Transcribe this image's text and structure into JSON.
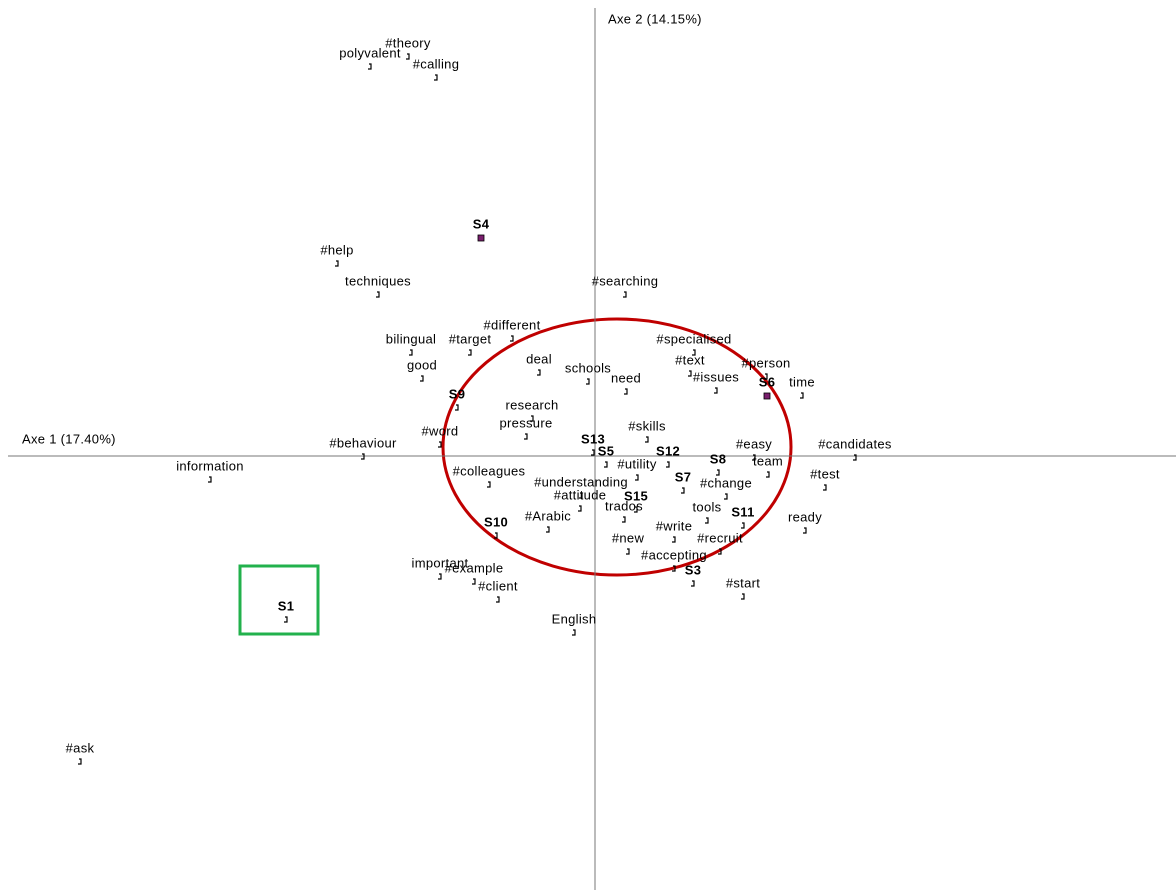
{
  "chart_data": {
    "type": "scatter",
    "xlabel": "Axe 1 (17.40%)",
    "ylabel": "Axe 2 (14.15%)",
    "xlim": [
      -5.95,
      5.81
    ],
    "ylim": [
      -4.34,
      4.56
    ],
    "color": "#000000",
    "highlight_color": "#7a1f6e",
    "points": [
      {
        "label": "#theory",
        "x": -1.87,
        "y": 3.99
      },
      {
        "label": "polyvalent",
        "x": -2.25,
        "y": 3.89
      },
      {
        "label": "#calling",
        "x": -1.59,
        "y": 3.78
      },
      {
        "label": "S4",
        "x": -1.14,
        "y": 2.18
      },
      {
        "label": "#help",
        "x": -2.58,
        "y": 1.92
      },
      {
        "label": "techniques",
        "x": -2.17,
        "y": 1.61
      },
      {
        "label": "#searching",
        "x": 0.3,
        "y": 1.61
      },
      {
        "label": "#different",
        "x": -0.83,
        "y": 1.17
      },
      {
        "label": "bilingual",
        "x": -1.84,
        "y": 1.03
      },
      {
        "label": "#target",
        "x": -1.25,
        "y": 1.03
      },
      {
        "label": "#specialised",
        "x": 0.99,
        "y": 1.03
      },
      {
        "label": "deal",
        "x": -0.56,
        "y": 0.83
      },
      {
        "label": "schools",
        "x": -0.07,
        "y": 0.74
      },
      {
        "label": "#text",
        "x": 0.95,
        "y": 0.82
      },
      {
        "label": "#person",
        "x": 1.71,
        "y": 0.79
      },
      {
        "label": "good",
        "x": -1.73,
        "y": 0.77
      },
      {
        "label": "need",
        "x": 0.31,
        "y": 0.64
      },
      {
        "label": "#issues",
        "x": 1.21,
        "y": 0.65
      },
      {
        "label": "S6",
        "x": 1.72,
        "y": 0.6
      },
      {
        "label": "time",
        "x": 2.07,
        "y": 0.6
      },
      {
        "label": "S9",
        "x": -1.38,
        "y": 0.48
      },
      {
        "label": "research",
        "x": -0.63,
        "y": 0.37
      },
      {
        "label": "pressure",
        "x": -0.69,
        "y": 0.19
      },
      {
        "label": "#word",
        "x": -1.55,
        "y": 0.11
      },
      {
        "label": "#skills",
        "x": 0.52,
        "y": 0.16
      },
      {
        "label": "#behaviour",
        "x": -2.32,
        "y": -0.01
      },
      {
        "label": "S13",
        "x": -0.02,
        "y": 0.03
      },
      {
        "label": "#easy",
        "x": 1.59,
        "y": -0.02
      },
      {
        "label": "#candidates",
        "x": 2.6,
        "y": -0.02
      },
      {
        "label": "S5",
        "x": 0.11,
        "y": -0.09
      },
      {
        "label": "S12",
        "x": 0.73,
        "y": -0.09
      },
      {
        "label": "#utility",
        "x": 0.42,
        "y": -0.22
      },
      {
        "label": "S8",
        "x": 1.23,
        "y": -0.17
      },
      {
        "label": "team",
        "x": 1.73,
        "y": -0.19
      },
      {
        "label": "information",
        "x": -3.85,
        "y": -0.24
      },
      {
        "label": "#colleagues",
        "x": -1.06,
        "y": -0.29
      },
      {
        "label": "#understanding",
        "x": -0.14,
        "y": -0.4
      },
      {
        "label": "#test",
        "x": 2.3,
        "y": -0.32
      },
      {
        "label": "S7",
        "x": 0.88,
        "y": -0.35
      },
      {
        "label": "#change",
        "x": 1.31,
        "y": -0.41
      },
      {
        "label": "#attitude",
        "x": -0.15,
        "y": -0.53
      },
      {
        "label": "S15",
        "x": 0.41,
        "y": -0.54
      },
      {
        "label": "tools",
        "x": 1.12,
        "y": -0.65
      },
      {
        "label": "trados",
        "x": 0.29,
        "y": -0.64
      },
      {
        "label": "S11",
        "x": 1.48,
        "y": -0.7
      },
      {
        "label": "ready",
        "x": 2.1,
        "y": -0.75
      },
      {
        "label": "#Arabic",
        "x": -0.47,
        "y": -0.74
      },
      {
        "label": "S10",
        "x": -0.99,
        "y": -0.8
      },
      {
        "label": "#write",
        "x": 0.79,
        "y": -0.84
      },
      {
        "label": "#new",
        "x": 0.33,
        "y": -0.96
      },
      {
        "label": "#recruit",
        "x": 1.25,
        "y": -0.96
      },
      {
        "label": "important",
        "x": -1.55,
        "y": -1.21
      },
      {
        "label": "#accepting",
        "x": 0.79,
        "y": -1.13
      },
      {
        "label": "#example",
        "x": -1.21,
        "y": -1.26
      },
      {
        "label": "S3",
        "x": 0.98,
        "y": -1.28
      },
      {
        "label": "#start",
        "x": 1.48,
        "y": -1.41
      },
      {
        "label": "#client",
        "x": -0.97,
        "y": -1.44
      },
      {
        "label": "S1",
        "x": -3.09,
        "y": -1.64
      },
      {
        "label": "English",
        "x": -0.21,
        "y": -1.77
      },
      {
        "label": "#ask",
        "x": -5.15,
        "y": -3.06
      }
    ]
  }
}
